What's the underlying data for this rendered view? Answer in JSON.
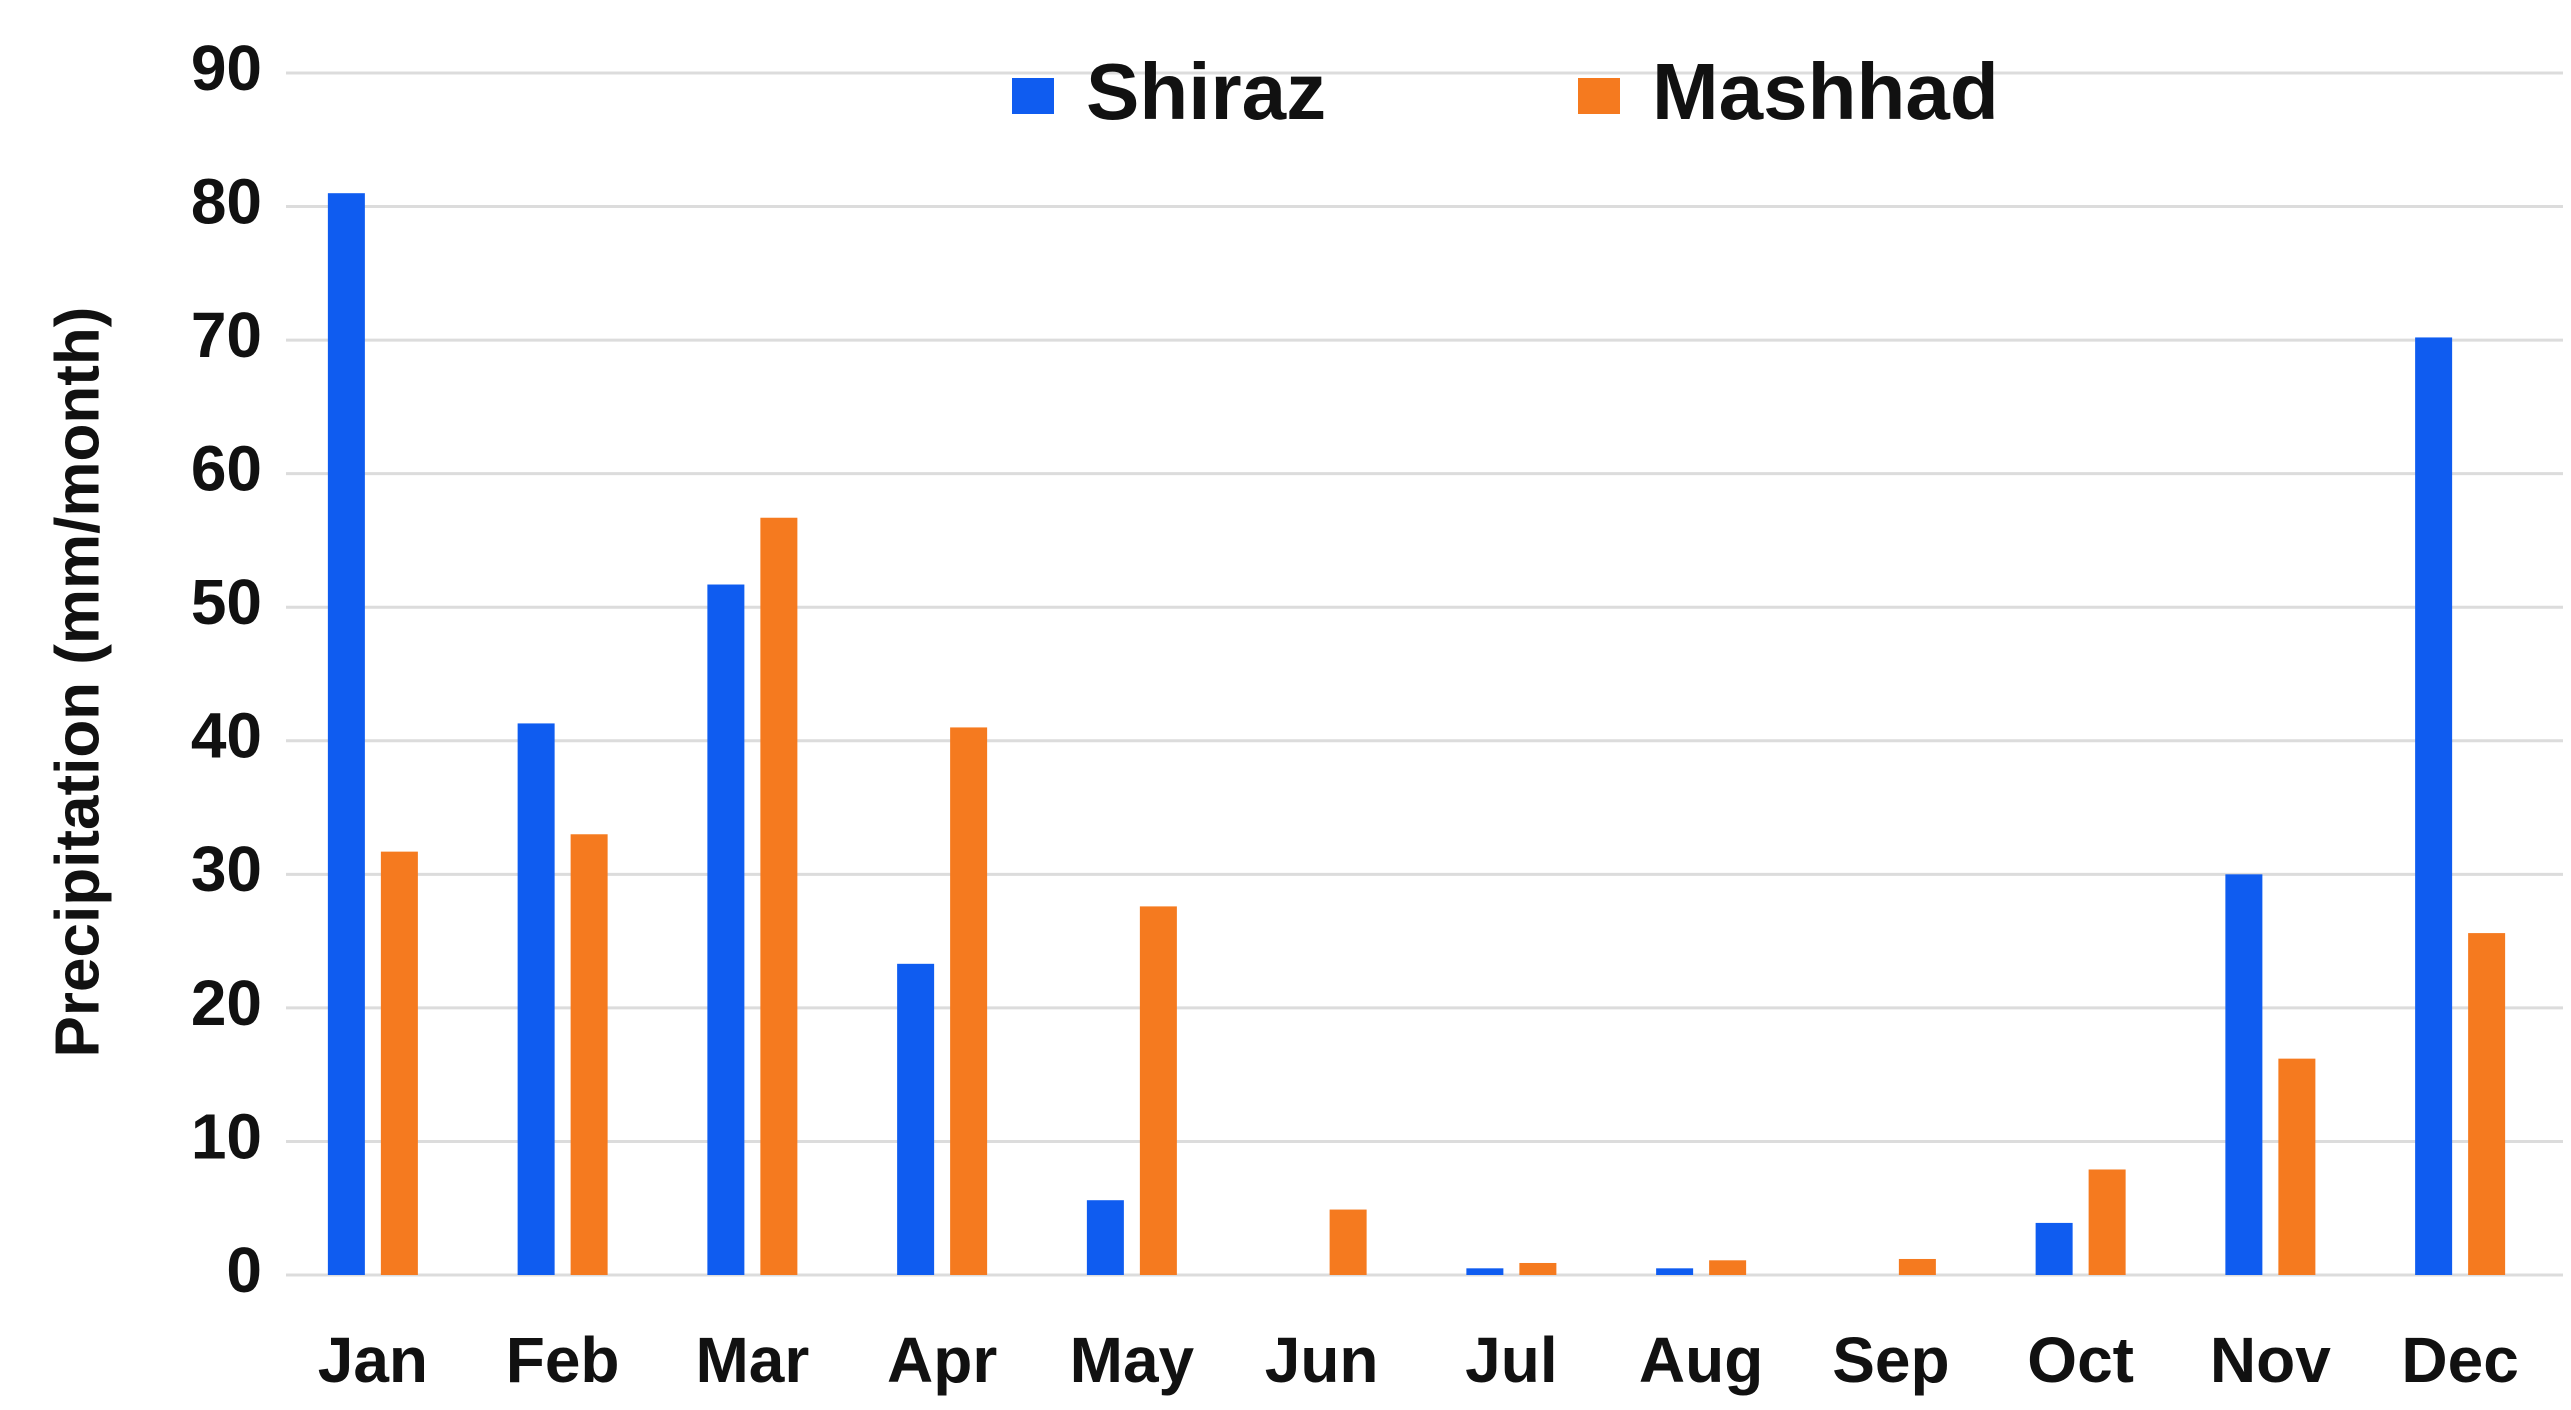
{
  "chart_data": {
    "type": "bar",
    "y_label": "Precipitation (mm/month)",
    "categories": [
      "Jan",
      "Feb",
      "Mar",
      "Apr",
      "May",
      "Jun",
      "Jul",
      "Aug",
      "Sep",
      "Oct",
      "Nov",
      "Dec"
    ],
    "series": [
      {
        "name": "Shiraz",
        "color": "#0f5cf0",
        "values": [
          81,
          41.3,
          51.7,
          23.3,
          5.6,
          0,
          0.5,
          0.5,
          0,
          3.9,
          30,
          70.2
        ]
      },
      {
        "name": "Mashhad",
        "color": "#f57a1f",
        "values": [
          31.7,
          33,
          56.7,
          41,
          27.6,
          4.9,
          0.9,
          1.1,
          1.2,
          7.9,
          16.2,
          25.6
        ]
      }
    ],
    "ylim": [
      0,
      90
    ],
    "yticks": [
      0,
      10,
      20,
      30,
      40,
      50,
      60,
      70,
      80,
      90
    ],
    "grid": true
  }
}
